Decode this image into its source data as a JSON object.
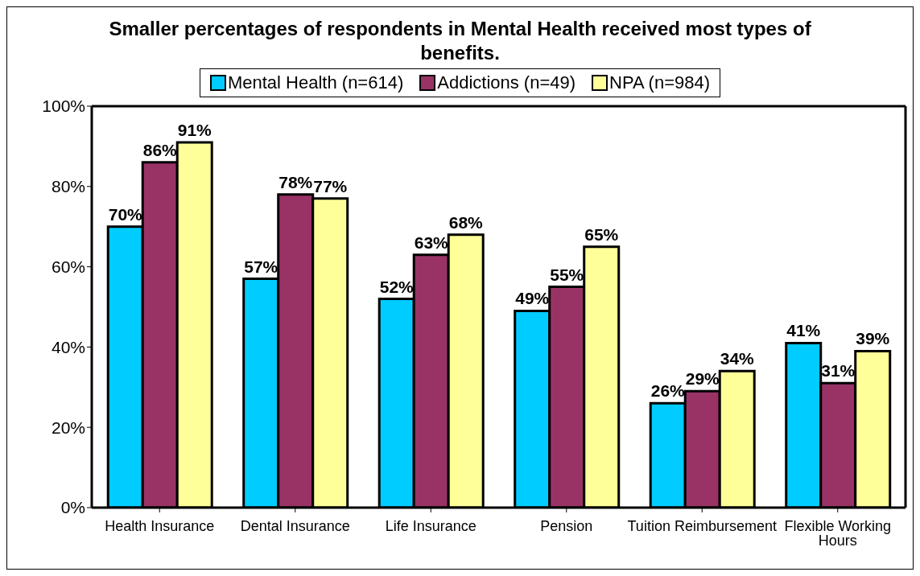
{
  "chart_data": {
    "type": "bar",
    "title": "Smaller percentages of respondents in Mental Health received most types of benefits.",
    "categories": [
      "Health Insurance",
      "Dental Insurance",
      "Life Insurance",
      "Pension",
      "Tuition Reimbursement",
      "Flexible Working Hours"
    ],
    "series": [
      {
        "name": "Mental Health (n=614)",
        "color": "#00ccff",
        "values": [
          70,
          57,
          52,
          49,
          26,
          41
        ],
        "value_labels": [
          "70%",
          "57%",
          "52%",
          "49%",
          "26%",
          "41%"
        ]
      },
      {
        "name": "Addictions (n=49)",
        "color": "#993366",
        "values": [
          86,
          78,
          63,
          55,
          29,
          31
        ],
        "value_labels": [
          "86%",
          "78%",
          "63%",
          "55%",
          "29%",
          "31%"
        ]
      },
      {
        "name": "NPA (n=984)",
        "color": "#ffff99",
        "values": [
          91,
          77,
          68,
          65,
          34,
          39
        ],
        "value_labels": [
          "91%",
          "77%",
          "68%",
          "65%",
          "34%",
          "39%"
        ]
      }
    ],
    "ylim": [
      0,
      100
    ],
    "yticks": [
      {
        "value": 0,
        "label": "0%"
      },
      {
        "value": 20,
        "label": "20%"
      },
      {
        "value": 40,
        "label": "40%"
      },
      {
        "value": 60,
        "label": "60%"
      },
      {
        "value": 80,
        "label": "80%"
      },
      {
        "value": 100,
        "label": "100%"
      }
    ],
    "grid": false,
    "legend": "top"
  }
}
